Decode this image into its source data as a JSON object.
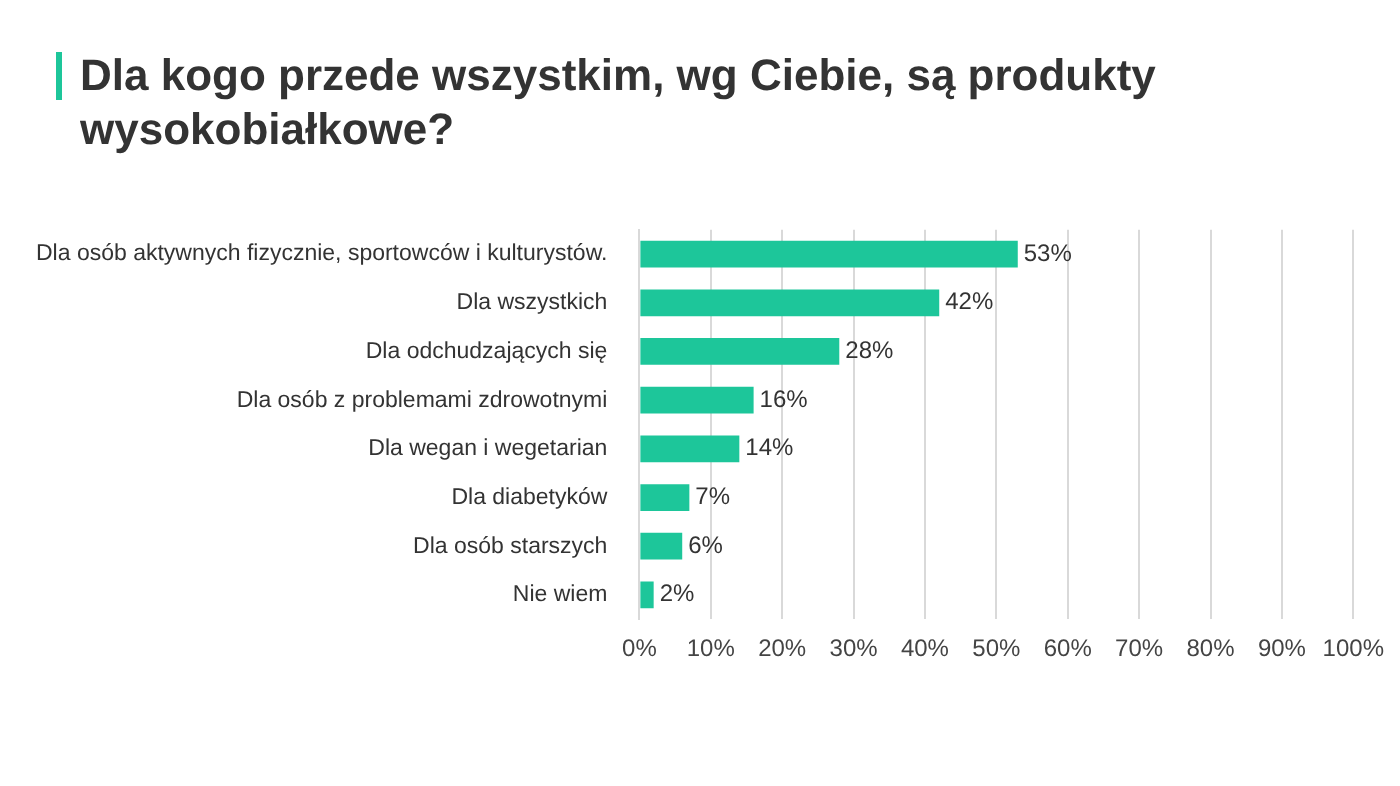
{
  "chart_data": {
    "type": "bar",
    "orientation": "horizontal",
    "title": "Dla kogo przede wszystkim, wg Ciebie, są produkty wysokobiałkowe?",
    "categories": [
      "Dla osób aktywnych fizycznie, sportowców i kulturystów.",
      "Dla wszystkich",
      "Dla odchudzających się",
      "Dla osób z problemami zdrowotnymi",
      "Dla wegan i wegetarian",
      "Dla diabetyków",
      "Dla osób starszych",
      "Nie wiem"
    ],
    "values": [
      53,
      42,
      28,
      16,
      14,
      7,
      6,
      2
    ],
    "value_labels": [
      "53%",
      "42%",
      "28%",
      "16%",
      "14%",
      "7%",
      "6%",
      "2%"
    ],
    "color": "#1dc69a",
    "xlim": [
      0,
      100
    ],
    "xticks": [
      {
        "value": 0,
        "label": "0%"
      },
      {
        "value": 10,
        "label": "10%"
      },
      {
        "value": 20,
        "label": "20%"
      },
      {
        "value": 30,
        "label": "30%"
      },
      {
        "value": 40,
        "label": "40%"
      },
      {
        "value": 50,
        "label": "50%"
      },
      {
        "value": 60,
        "label": "60%"
      },
      {
        "value": 70,
        "label": "70%"
      },
      {
        "value": 80,
        "label": "80%"
      },
      {
        "value": 90,
        "label": "90%"
      },
      {
        "value": 100,
        "label": "100%"
      }
    ],
    "grid": "x",
    "legend": false
  }
}
